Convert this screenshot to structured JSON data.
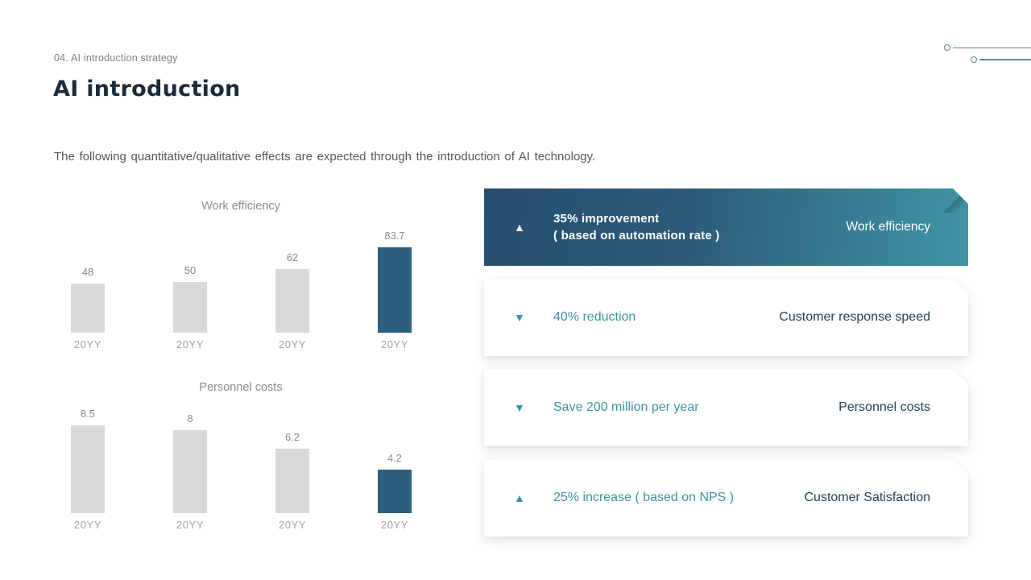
{
  "slide": {
    "eyebrow": "04. AI introduction strategy",
    "title": "AI introduction",
    "description": "The following quantitative/qualitative effects are expected through the introduction of AI technology."
  },
  "colors": {
    "accent_teal": "#3e92a3",
    "dark_navy_text": "#1f4257",
    "title_navy": "#1c2b39",
    "bar_gray": "#d9d9d9",
    "bar_highlight": "#2d5f7e",
    "card_gradient_start": "#264f6d",
    "card_gradient_end": "#4095a6",
    "decor_line": "#5b84a0"
  },
  "chart_data": [
    {
      "type": "bar",
      "title": "Work efficiency",
      "categories": [
        "20YY",
        "20YY",
        "20YY",
        "20YY"
      ],
      "values": [
        48,
        50,
        62,
        83.7
      ],
      "data_labels": [
        "48",
        "50",
        "62",
        "83.7"
      ],
      "highlight_index": 3,
      "xlabel": "",
      "ylabel": "",
      "ylim": [
        0,
        100
      ],
      "grid": false,
      "legend": false
    },
    {
      "type": "bar",
      "title": "Personnel costs",
      "categories": [
        "20YY",
        "20YY",
        "20YY",
        "20YY"
      ],
      "values": [
        8.5,
        8,
        6.2,
        4.2
      ],
      "data_labels": [
        "8.5",
        "8",
        "6.2",
        "4.2"
      ],
      "highlight_index": 3,
      "xlabel": "",
      "ylabel": "",
      "ylim": [
        0,
        10
      ],
      "grid": false,
      "legend": false
    }
  ],
  "cards": [
    {
      "variant": "dark",
      "direction": "up",
      "arrow": "▲",
      "stat_line1": "35% improvement",
      "stat_line2": "( based on automation rate )",
      "category": "Work efficiency"
    },
    {
      "variant": "light",
      "direction": "down",
      "arrow": "▼",
      "stat": "40% reduction",
      "category": "Customer response speed"
    },
    {
      "variant": "light",
      "direction": "down",
      "arrow": "▼",
      "stat": "Save 200 million per year",
      "category": "Personnel costs"
    },
    {
      "variant": "light",
      "direction": "up",
      "arrow": "▲",
      "stat": "25% increase ( based on NPS )",
      "category": "Customer Satisfaction"
    }
  ]
}
